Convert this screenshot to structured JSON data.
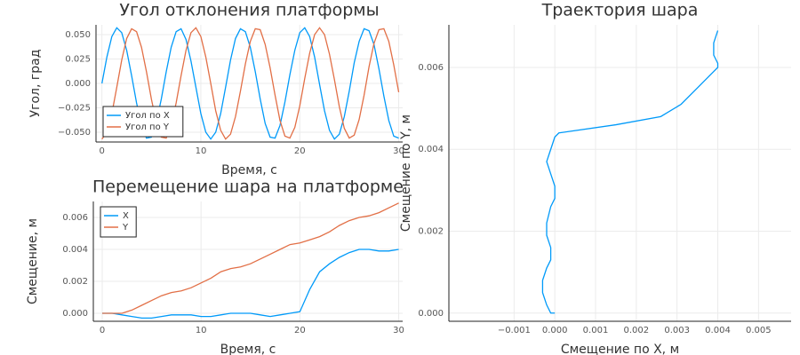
{
  "chart_data": [
    {
      "type": "line",
      "title": "Угол отклонения платформы",
      "xlabel": "Время, с",
      "ylabel": "Угол, град",
      "legend": "lower left",
      "grid": true,
      "x": [
        0,
        0.5,
        1,
        1.5,
        2,
        2.5,
        3,
        3.5,
        4,
        4.5,
        5,
        5.5,
        6,
        6.5,
        7,
        7.5,
        8,
        8.5,
        9,
        9.5,
        10,
        10.5,
        11,
        11.5,
        12,
        12.5,
        13,
        13.5,
        14,
        14.5,
        15,
        15.5,
        16,
        16.5,
        17,
        17.5,
        18,
        18.5,
        19,
        19.5,
        20,
        20.5,
        21,
        21.5,
        22,
        22.5,
        23,
        23.5,
        24,
        24.5,
        25,
        25.5,
        26,
        26.5,
        27,
        27.5,
        28,
        28.5,
        29,
        29.5,
        30
      ],
      "series": [
        {
          "name": "Угол по X",
          "color": "#009af9",
          "values": [
            0,
            0.027,
            0.048,
            0.057,
            0.052,
            0.034,
            0.008,
            -0.02,
            -0.043,
            -0.056,
            -0.055,
            -0.04,
            -0.016,
            0.012,
            0.037,
            0.053,
            0.056,
            0.045,
            0.023,
            -0.004,
            -0.031,
            -0.05,
            -0.057,
            -0.05,
            -0.031,
            -0.004,
            0.024,
            0.046,
            0.056,
            0.053,
            0.037,
            0.012,
            -0.016,
            -0.041,
            -0.055,
            -0.056,
            -0.043,
            -0.019,
            0.009,
            0.034,
            0.052,
            0.057,
            0.048,
            0.027,
            -0.001,
            -0.028,
            -0.048,
            -0.057,
            -0.052,
            -0.034,
            -0.008,
            0.021,
            0.043,
            0.056,
            0.054,
            0.04,
            0.015,
            -0.013,
            -0.038,
            -0.054,
            -0.056
          ]
        },
        {
          "name": "Угол по Y",
          "color": "#e26f46",
          "values": [
            -0.057,
            -0.05,
            -0.031,
            -0.004,
            0.024,
            0.046,
            0.056,
            0.053,
            0.037,
            0.012,
            -0.016,
            -0.04,
            -0.055,
            -0.056,
            -0.043,
            -0.02,
            0.008,
            0.034,
            0.052,
            0.057,
            0.048,
            0.027,
            0,
            -0.028,
            -0.048,
            -0.057,
            -0.052,
            -0.034,
            -0.008,
            0.02,
            0.043,
            0.056,
            0.055,
            0.04,
            0.016,
            -0.012,
            -0.038,
            -0.054,
            -0.056,
            -0.045,
            -0.023,
            0.005,
            0.031,
            0.05,
            0.057,
            0.05,
            0.03,
            0.004,
            -0.024,
            -0.046,
            -0.056,
            -0.053,
            -0.037,
            -0.012,
            0.017,
            0.041,
            0.055,
            0.056,
            0.043,
            0.019,
            -0.009
          ]
        }
      ],
      "xlim": [
        -0.6,
        30.4
      ],
      "xticks": [
        0,
        10,
        20,
        30
      ],
      "ylim": [
        -0.06,
        0.06
      ],
      "yticks": [
        {
          "value": -0.05,
          "label": "−0.050"
        },
        {
          "value": -0.025,
          "label": "−0.025"
        },
        {
          "value": 0,
          "label": "0.000"
        },
        {
          "value": 0.025,
          "label": "0.025"
        },
        {
          "value": 0.05,
          "label": "0.050"
        }
      ]
    },
    {
      "type": "line",
      "title": "Перемещение шара на платформе",
      "xlabel": "Время, с",
      "ylabel": "Смещение, м",
      "legend": "upper left",
      "grid": true,
      "x": [
        0,
        1,
        2,
        3,
        4,
        5,
        6,
        7,
        8,
        9,
        10,
        11,
        12,
        13,
        14,
        15,
        16,
        17,
        18,
        19,
        20,
        21,
        22,
        23,
        24,
        25,
        26,
        27,
        28,
        29,
        30
      ],
      "series": [
        {
          "name": "X",
          "color": "#009af9",
          "values": [
            0,
            0,
            -0.0001,
            -0.0002,
            -0.0003,
            -0.0003,
            -0.0002,
            -0.0001,
            -0.0001,
            -0.0001,
            -0.0002,
            -0.0002,
            -0.0001,
            0,
            0,
            0,
            -0.0001,
            -0.0002,
            -0.0001,
            0,
            0.0001,
            0.0015,
            0.0026,
            0.0031,
            0.0035,
            0.0038,
            0.004,
            0.004,
            0.0039,
            0.0039,
            0.004
          ]
        },
        {
          "name": "Y",
          "color": "#e26f46",
          "values": [
            0,
            0,
            0,
            0.0002,
            0.0005,
            0.0008,
            0.0011,
            0.0013,
            0.0014,
            0.0016,
            0.0019,
            0.0022,
            0.0026,
            0.0028,
            0.0029,
            0.0031,
            0.0034,
            0.0037,
            0.004,
            0.0043,
            0.0044,
            0.0046,
            0.0048,
            0.0051,
            0.0055,
            0.0058,
            0.006,
            0.0061,
            0.0063,
            0.0066,
            0.0069
          ]
        }
      ],
      "xlim": [
        -0.9,
        30.4
      ],
      "xticks": [
        0,
        10,
        20,
        30
      ],
      "ylim": [
        -0.0005,
        0.007
      ],
      "yticks": [
        {
          "value": 0,
          "label": "0.000"
        },
        {
          "value": 0.002,
          "label": "0.002"
        },
        {
          "value": 0.004,
          "label": "0.004"
        },
        {
          "value": 0.006,
          "label": "0.006"
        }
      ]
    },
    {
      "type": "line",
      "title": "Траектория шара",
      "xlabel": "Смещение по X, м",
      "ylabel": "Смещение по Y, м",
      "grid": true,
      "x": [
        0,
        0,
        -0.0001,
        -0.0002,
        -0.0003,
        -0.0003,
        -0.0002,
        -0.0001,
        -0.0001,
        -0.0001,
        -0.0002,
        -0.0002,
        -0.0001,
        0,
        0,
        0,
        -0.0001,
        -0.0002,
        -0.0001,
        0,
        0.0001,
        0.0015,
        0.0026,
        0.0031,
        0.0035,
        0.0038,
        0.004,
        0.004,
        0.0039,
        0.0039,
        0.004
      ],
      "series": [
        {
          "color": "#009af9",
          "values": [
            0,
            0,
            0,
            0.0002,
            0.0005,
            0.0008,
            0.0011,
            0.0013,
            0.0014,
            0.0016,
            0.0019,
            0.0022,
            0.0026,
            0.0028,
            0.0029,
            0.0031,
            0.0034,
            0.0037,
            0.004,
            0.0043,
            0.0044,
            0.0046,
            0.0048,
            0.0051,
            0.0055,
            0.0058,
            0.006,
            0.0061,
            0.0063,
            0.0066,
            0.0069
          ]
        }
      ],
      "xlim": [
        -0.0026,
        0.0058
      ],
      "xticks": [
        {
          "value": -0.001,
          "label": "−0.001"
        },
        {
          "value": 0,
          "label": "0.000"
        },
        {
          "value": 0.001,
          "label": "0.001"
        },
        {
          "value": 0.002,
          "label": "0.002"
        },
        {
          "value": 0.003,
          "label": "0.003"
        },
        {
          "value": 0.004,
          "label": "0.004"
        },
        {
          "value": 0.005,
          "label": "0.005"
        }
      ],
      "ylim": [
        -0.0002,
        0.00704
      ],
      "yticks": [
        {
          "value": 0,
          "label": "0.000"
        },
        {
          "value": 0.002,
          "label": "0.002"
        },
        {
          "value": 0.004,
          "label": "0.004"
        },
        {
          "value": 0.006,
          "label": "0.006"
        }
      ]
    }
  ]
}
